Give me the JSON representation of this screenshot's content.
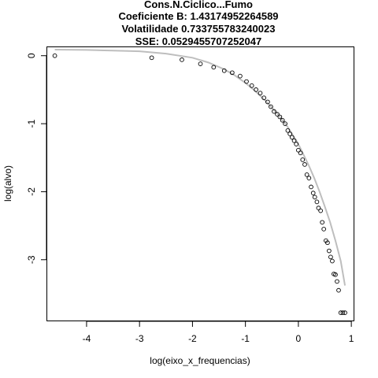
{
  "chart_data": {
    "type": "scatter",
    "title": [
      "Cons.N.Ciclico...Fumo",
      "Coeficiente B:  1.43174952264589",
      "Volatilidade 0.733755783240023",
      "SSE: 0.0529455707252047"
    ],
    "xlabel": "log(eixo_x_frequencias)",
    "ylabel": "log(alvo)",
    "xlim": [
      -4.75,
      1.05
    ],
    "ylim": [
      -3.9,
      0.13
    ],
    "xticks": [
      -4,
      -3,
      -2,
      -1,
      0,
      1
    ],
    "yticks": [
      -3,
      -2,
      -1,
      0
    ],
    "grid": false,
    "legend": "none",
    "colors": {
      "points": "#000000",
      "fit": "#bebebe"
    },
    "series": [
      {
        "kind": "points",
        "x": [
          -4.6,
          -2.77,
          -2.2,
          -1.85,
          -1.6,
          -1.4,
          -1.25,
          -1.1,
          -0.98,
          -0.88,
          -0.8,
          -0.72,
          -0.65,
          -0.58,
          -0.52,
          -0.46,
          -0.4,
          -0.35,
          -0.3,
          -0.25,
          -0.2,
          -0.16,
          -0.12,
          -0.08,
          -0.04,
          0.0,
          0.04,
          0.08,
          0.12,
          0.16,
          0.2,
          0.24,
          0.28,
          0.31,
          0.35,
          0.38,
          0.42,
          0.45,
          0.48,
          0.52,
          0.55,
          0.58,
          0.61,
          0.64,
          0.67,
          0.7,
          0.73,
          0.76,
          0.8,
          0.84,
          0.88
        ],
        "y": [
          0.0,
          -0.03,
          -0.06,
          -0.12,
          -0.17,
          -0.22,
          -0.25,
          -0.3,
          -0.38,
          -0.44,
          -0.5,
          -0.55,
          -0.62,
          -0.68,
          -0.75,
          -0.82,
          -0.86,
          -0.9,
          -0.95,
          -1.0,
          -1.1,
          -1.15,
          -1.2,
          -1.25,
          -1.3,
          -1.39,
          -1.43,
          -1.53,
          -1.6,
          -1.75,
          -1.8,
          -1.93,
          -2.02,
          -2.08,
          -2.15,
          -2.24,
          -2.28,
          -2.45,
          -2.55,
          -2.72,
          -2.75,
          -2.87,
          -2.96,
          -3.02,
          -3.21,
          -3.22,
          -3.32,
          -3.45,
          -3.78,
          -3.78,
          -3.78
        ]
      },
      {
        "kind": "fit-line",
        "x": [
          -4.6,
          -4.0,
          -3.5,
          -3.0,
          -2.5,
          -2.0,
          -1.7,
          -1.4,
          -1.2,
          -1.0,
          -0.8,
          -0.6,
          -0.4,
          -0.2,
          0.0,
          0.1,
          0.2,
          0.3,
          0.4,
          0.5,
          0.6,
          0.7,
          0.8,
          0.88
        ],
        "y": [
          0.09,
          0.085,
          0.075,
          0.065,
          0.03,
          -0.03,
          -0.1,
          -0.2,
          -0.29,
          -0.4,
          -0.53,
          -0.68,
          -0.85,
          -1.05,
          -1.3,
          -1.46,
          -1.62,
          -1.8,
          -2.0,
          -2.22,
          -2.45,
          -2.72,
          -3.02,
          -3.38
        ]
      }
    ]
  }
}
